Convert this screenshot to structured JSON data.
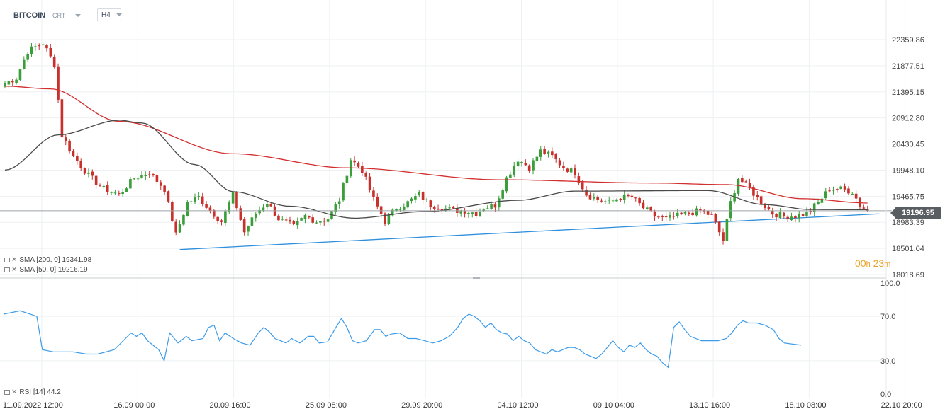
{
  "header": {
    "symbol": "BITCOIN",
    "chart_type": "CRT",
    "timeframe": "H4"
  },
  "legend": {
    "sma200": "SMA [200, 0] 19341.98",
    "sma50": "SMA [50, 0] 19216.19",
    "rsi": "RSI [14] 44.2"
  },
  "timer": {
    "hours": "00",
    "h_unit": "h",
    "minutes": "23",
    "m_unit": "m"
  },
  "last_price_label": "19196.95",
  "colors": {
    "up": "#3a9e3a",
    "down": "#c9302c",
    "sma200": "#d32f2f",
    "sma50": "#4a4a4a",
    "trendline": "#2f8fdc",
    "rsi": "#3d9be9",
    "last_price": "#595e63"
  },
  "chart_data": [
    {
      "type": "candlestick",
      "price_ticks": [
        "22359.86",
        "21877.51",
        "21395.15",
        "20912.80",
        "20430.45",
        "19948.10",
        "19465.75",
        "18983.39",
        "18501.04",
        "18018.69"
      ],
      "ylim": [
        18018.69,
        22359.86
      ],
      "time_ticks": [
        "11.09.2022 12:00",
        "16.09 00:00",
        "20.09 16:00",
        "25.09 08:00",
        "29.09 20:00",
        "04.10 12:00",
        "09.10 04:00",
        "13.10 16:00",
        "18.10 08:00",
        "22.10 20:00"
      ],
      "last_price": 19196.95,
      "anchors": [
        {
          "i": 0,
          "p": 21550
        },
        {
          "i": 3,
          "p": 21650
        },
        {
          "i": 6,
          "p": 22150
        },
        {
          "i": 10,
          "p": 22300
        },
        {
          "i": 13,
          "p": 21900
        },
        {
          "i": 15,
          "p": 20600
        },
        {
          "i": 18,
          "p": 20200
        },
        {
          "i": 22,
          "p": 19850
        },
        {
          "i": 26,
          "p": 19600
        },
        {
          "i": 30,
          "p": 19500
        },
        {
          "i": 34,
          "p": 19800
        },
        {
          "i": 38,
          "p": 19900
        },
        {
          "i": 42,
          "p": 19600
        },
        {
          "i": 45,
          "p": 18750
        },
        {
          "i": 48,
          "p": 19350
        },
        {
          "i": 51,
          "p": 19450
        },
        {
          "i": 54,
          "p": 19200
        },
        {
          "i": 57,
          "p": 19000
        },
        {
          "i": 60,
          "p": 19500
        },
        {
          "i": 63,
          "p": 18800
        },
        {
          "i": 66,
          "p": 19150
        },
        {
          "i": 69,
          "p": 19350
        },
        {
          "i": 72,
          "p": 19050
        },
        {
          "i": 76,
          "p": 18900
        },
        {
          "i": 79,
          "p": 19100
        },
        {
          "i": 82,
          "p": 19000
        },
        {
          "i": 85,
          "p": 19050
        },
        {
          "i": 88,
          "p": 19400
        },
        {
          "i": 91,
          "p": 20150
        },
        {
          "i": 94,
          "p": 19950
        },
        {
          "i": 97,
          "p": 19400
        },
        {
          "i": 100,
          "p": 19000
        },
        {
          "i": 103,
          "p": 19250
        },
        {
          "i": 106,
          "p": 19350
        },
        {
          "i": 109,
          "p": 19500
        },
        {
          "i": 112,
          "p": 19300
        },
        {
          "i": 115,
          "p": 19250
        },
        {
          "i": 118,
          "p": 19200
        },
        {
          "i": 121,
          "p": 19200
        },
        {
          "i": 124,
          "p": 19150
        },
        {
          "i": 126,
          "p": 19250
        },
        {
          "i": 129,
          "p": 19300
        },
        {
          "i": 132,
          "p": 19800
        },
        {
          "i": 135,
          "p": 20150
        },
        {
          "i": 138,
          "p": 20000
        },
        {
          "i": 141,
          "p": 20300
        },
        {
          "i": 144,
          "p": 20200
        },
        {
          "i": 147,
          "p": 20000
        },
        {
          "i": 150,
          "p": 19900
        },
        {
          "i": 153,
          "p": 19500
        },
        {
          "i": 156,
          "p": 19400
        },
        {
          "i": 159,
          "p": 19350
        },
        {
          "i": 162,
          "p": 19450
        },
        {
          "i": 165,
          "p": 19450
        },
        {
          "i": 168,
          "p": 19250
        },
        {
          "i": 171,
          "p": 19100
        },
        {
          "i": 174,
          "p": 19050
        },
        {
          "i": 177,
          "p": 19100
        },
        {
          "i": 180,
          "p": 19150
        },
        {
          "i": 183,
          "p": 19200
        },
        {
          "i": 186,
          "p": 19100
        },
        {
          "i": 189,
          "p": 18650
        },
        {
          "i": 191,
          "p": 19350
        },
        {
          "i": 193,
          "p": 19800
        },
        {
          "i": 196,
          "p": 19600
        },
        {
          "i": 199,
          "p": 19350
        },
        {
          "i": 202,
          "p": 19150
        },
        {
          "i": 205,
          "p": 19100
        },
        {
          "i": 208,
          "p": 19100
        },
        {
          "i": 211,
          "p": 19150
        },
        {
          "i": 214,
          "p": 19350
        },
        {
          "i": 217,
          "p": 19600
        },
        {
          "i": 220,
          "p": 19600
        },
        {
          "i": 223,
          "p": 19550
        },
        {
          "i": 225,
          "p": 19300
        },
        {
          "i": 227,
          "p": 19200
        }
      ],
      "sma200": [
        {
          "i": 0,
          "v": 21500
        },
        {
          "i": 12,
          "v": 21450
        },
        {
          "i": 30,
          "v": 20850
        },
        {
          "i": 60,
          "v": 20250
        },
        {
          "i": 90,
          "v": 19990
        },
        {
          "i": 130,
          "v": 19770
        },
        {
          "i": 170,
          "v": 19710
        },
        {
          "i": 190,
          "v": 19680
        },
        {
          "i": 210,
          "v": 19420
        },
        {
          "i": 227,
          "v": 19340
        }
      ],
      "sma50": [
        {
          "i": 0,
          "v": 19950
        },
        {
          "i": 14,
          "v": 20600
        },
        {
          "i": 30,
          "v": 20870
        },
        {
          "i": 36,
          "v": 20820
        },
        {
          "i": 50,
          "v": 20050
        },
        {
          "i": 60,
          "v": 19550
        },
        {
          "i": 75,
          "v": 19280
        },
        {
          "i": 92,
          "v": 19060
        },
        {
          "i": 110,
          "v": 19180
        },
        {
          "i": 135,
          "v": 19390
        },
        {
          "i": 150,
          "v": 19560
        },
        {
          "i": 185,
          "v": 19570
        },
        {
          "i": 200,
          "v": 19310
        },
        {
          "i": 212,
          "v": 19220
        },
        {
          "i": 227,
          "v": 19216
        }
      ],
      "trendline": [
        {
          "i": 46,
          "v": 18480
        },
        {
          "i": 230,
          "v": 19140
        }
      ]
    },
    {
      "type": "line",
      "name": "RSI [14]",
      "yticks": [
        "100.0",
        "70.0",
        "30.0",
        "0.0"
      ],
      "ylim": [
        0,
        100
      ],
      "values": [
        [
          0,
          72
        ],
        [
          6,
          75
        ],
        [
          12,
          70
        ],
        [
          14,
          40
        ],
        [
          18,
          38
        ],
        [
          25,
          38
        ],
        [
          30,
          36
        ],
        [
          34,
          36
        ],
        [
          40,
          40
        ],
        [
          44,
          50
        ],
        [
          46,
          55
        ],
        [
          48,
          52
        ],
        [
          50,
          55
        ],
        [
          52,
          48
        ],
        [
          54,
          44
        ],
        [
          56,
          40
        ],
        [
          58,
          30
        ],
        [
          60,
          55
        ],
        [
          63,
          46
        ],
        [
          66,
          52
        ],
        [
          68,
          48
        ],
        [
          72,
          50
        ],
        [
          74,
          60
        ],
        [
          76,
          62
        ],
        [
          78,
          48
        ],
        [
          80,
          55
        ],
        [
          83,
          50
        ],
        [
          86,
          46
        ],
        [
          89,
          44
        ],
        [
          92,
          55
        ],
        [
          94,
          60
        ],
        [
          96,
          56
        ],
        [
          98,
          50
        ],
        [
          100,
          48
        ],
        [
          102,
          46
        ],
        [
          104,
          50
        ],
        [
          107,
          46
        ],
        [
          110,
          52
        ],
        [
          112,
          52
        ],
        [
          114,
          46
        ],
        [
          117,
          47
        ],
        [
          120,
          60
        ],
        [
          122,
          68
        ],
        [
          124,
          60
        ],
        [
          126,
          48
        ],
        [
          128,
          46
        ],
        [
          131,
          48
        ],
        [
          134,
          58
        ],
        [
          136,
          58
        ],
        [
          138,
          52
        ],
        [
          140,
          54
        ],
        [
          143,
          55
        ],
        [
          146,
          50
        ],
        [
          149,
          50
        ],
        [
          152,
          48
        ],
        [
          155,
          46
        ],
        [
          158,
          48
        ],
        [
          161,
          52
        ],
        [
          164,
          60
        ],
        [
          166,
          68
        ],
        [
          168,
          72
        ],
        [
          170,
          70
        ],
        [
          172,
          66
        ],
        [
          174,
          60
        ],
        [
          176,
          64
        ],
        [
          178,
          58
        ],
        [
          180,
          55
        ],
        [
          182,
          54
        ],
        [
          184,
          48
        ],
        [
          186,
          52
        ],
        [
          188,
          48
        ],
        [
          190,
          46
        ],
        [
          192,
          40
        ],
        [
          194,
          38
        ],
        [
          196,
          36
        ],
        [
          198,
          40
        ],
        [
          200,
          38
        ],
        [
          202,
          40
        ],
        [
          204,
          42
        ],
        [
          206,
          42
        ],
        [
          208,
          40
        ],
        [
          210,
          36
        ],
        [
          212,
          34
        ],
        [
          214,
          32
        ],
        [
          216,
          36
        ],
        [
          218,
          42
        ],
        [
          220,
          48
        ],
        [
          222,
          42
        ],
        [
          224,
          38
        ],
        [
          226,
          44
        ],
        [
          228,
          42
        ],
        [
          230,
          46
        ],
        [
          232,
          40
        ],
        [
          234,
          36
        ],
        [
          236,
          34
        ],
        [
          238,
          28
        ],
        [
          240,
          24
        ],
        [
          242,
          60
        ],
        [
          244,
          65
        ],
        [
          246,
          58
        ],
        [
          248,
          52
        ],
        [
          250,
          50
        ],
        [
          252,
          48
        ],
        [
          255,
          48
        ],
        [
          258,
          48
        ],
        [
          261,
          50
        ],
        [
          263,
          55
        ],
        [
          265,
          62
        ],
        [
          267,
          66
        ],
        [
          269,
          64
        ],
        [
          272,
          64
        ],
        [
          275,
          62
        ],
        [
          278,
          58
        ],
        [
          280,
          50
        ],
        [
          282,
          46
        ],
        [
          285,
          45
        ],
        [
          288,
          44
        ]
      ],
      "x_span": [
        0,
        288
      ]
    }
  ]
}
